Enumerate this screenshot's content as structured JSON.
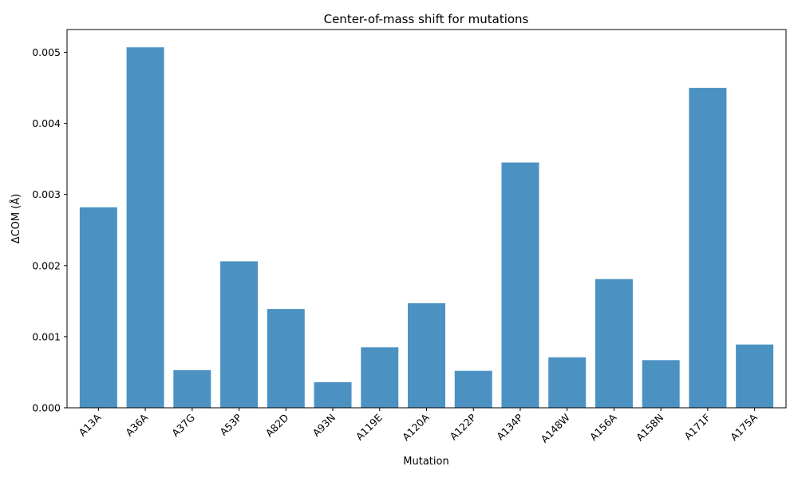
{
  "chart_data": {
    "type": "bar",
    "title": "Center-of-mass shift for mutations",
    "xlabel": "Mutation",
    "ylabel": "ΔCOM (Å)",
    "categories": [
      "A13A",
      "A36A",
      "A37G",
      "A53P",
      "A82D",
      "A93N",
      "A119E",
      "A120A",
      "A122P",
      "A134P",
      "A148W",
      "A156A",
      "A158N",
      "A171F",
      "A175A"
    ],
    "values": [
      0.00282,
      0.00507,
      0.00053,
      0.00206,
      0.00139,
      0.00036,
      0.00085,
      0.00147,
      0.00052,
      0.00345,
      0.00071,
      0.00181,
      0.00067,
      0.0045,
      0.00089
    ],
    "yticks": [
      "0.000",
      "0.001",
      "0.002",
      "0.003",
      "0.004",
      "0.005"
    ],
    "ylim": [
      0,
      0.00532
    ],
    "bar_color": "#4b92c3",
    "grid": false,
    "legend": false
  }
}
